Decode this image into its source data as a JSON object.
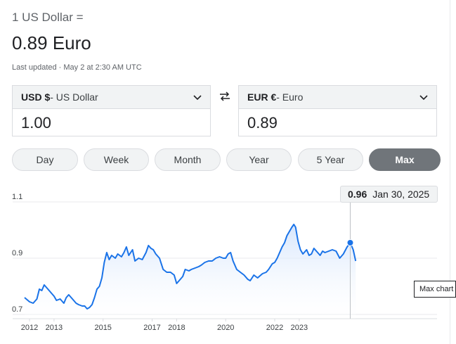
{
  "header": {
    "base_text": "1 US Dollar =",
    "result_text": "0.89 Euro",
    "updated_text": "Last updated · May 2 at 2:30 AM UTC"
  },
  "converter": {
    "from": {
      "code": "USD $",
      "name": " - US Dollar",
      "amount": "1.00",
      "icon": "chevron-down-icon"
    },
    "to": {
      "code": "EUR €",
      "name": " - Euro",
      "amount": "0.89",
      "icon": "chevron-down-icon"
    },
    "swap_icon": "swap-arrows-icon"
  },
  "ranges": {
    "items": [
      "Day",
      "Week",
      "Month",
      "Year",
      "5 Year",
      "Max"
    ],
    "active": "Max"
  },
  "tooltip": {
    "value": "0.96",
    "date": "Jan 30, 2025"
  },
  "alt_tooltip": {
    "text": "Max chart"
  },
  "colors": {
    "line": "#1a73e8",
    "active_pill": "#70757a",
    "area_top": "#d2e3fc"
  },
  "chart_data": {
    "type": "line",
    "series": [
      {
        "values": [
          [
            2011.8,
            0.76
          ],
          [
            2012.0,
            0.745
          ],
          [
            2012.15,
            0.74
          ],
          [
            2012.3,
            0.755
          ],
          [
            2012.4,
            0.79
          ],
          [
            2012.5,
            0.785
          ],
          [
            2012.6,
            0.805
          ],
          [
            2012.75,
            0.79
          ],
          [
            2012.9,
            0.775
          ],
          [
            2013.0,
            0.765
          ],
          [
            2013.1,
            0.75
          ],
          [
            2013.25,
            0.755
          ],
          [
            2013.4,
            0.74
          ],
          [
            2013.5,
            0.76
          ],
          [
            2013.6,
            0.77
          ],
          [
            2013.75,
            0.755
          ],
          [
            2013.9,
            0.74
          ],
          [
            2014.0,
            0.735
          ],
          [
            2014.15,
            0.73
          ],
          [
            2014.25,
            0.73
          ],
          [
            2014.35,
            0.72
          ],
          [
            2014.45,
            0.725
          ],
          [
            2014.55,
            0.735
          ],
          [
            2014.65,
            0.76
          ],
          [
            2014.75,
            0.79
          ],
          [
            2014.85,
            0.8
          ],
          [
            2014.95,
            0.83
          ],
          [
            2015.05,
            0.885
          ],
          [
            2015.15,
            0.92
          ],
          [
            2015.25,
            0.895
          ],
          [
            2015.35,
            0.91
          ],
          [
            2015.5,
            0.9
          ],
          [
            2015.6,
            0.915
          ],
          [
            2015.75,
            0.905
          ],
          [
            2015.85,
            0.92
          ],
          [
            2015.95,
            0.94
          ],
          [
            2016.05,
            0.91
          ],
          [
            2016.2,
            0.93
          ],
          [
            2016.3,
            0.89
          ],
          [
            2016.45,
            0.9
          ],
          [
            2016.6,
            0.895
          ],
          [
            2016.75,
            0.92
          ],
          [
            2016.85,
            0.945
          ],
          [
            2016.95,
            0.935
          ],
          [
            2017.05,
            0.93
          ],
          [
            2017.15,
            0.915
          ],
          [
            2017.3,
            0.9
          ],
          [
            2017.45,
            0.86
          ],
          [
            2017.6,
            0.85
          ],
          [
            2017.75,
            0.85
          ],
          [
            2017.9,
            0.84
          ],
          [
            2018.0,
            0.81
          ],
          [
            2018.1,
            0.82
          ],
          [
            2018.25,
            0.835
          ],
          [
            2018.35,
            0.86
          ],
          [
            2018.5,
            0.855
          ],
          [
            2018.6,
            0.86
          ],
          [
            2018.75,
            0.865
          ],
          [
            2018.9,
            0.87
          ],
          [
            2019.0,
            0.875
          ],
          [
            2019.15,
            0.885
          ],
          [
            2019.3,
            0.89
          ],
          [
            2019.45,
            0.89
          ],
          [
            2019.6,
            0.9
          ],
          [
            2019.75,
            0.905
          ],
          [
            2019.9,
            0.9
          ],
          [
            2020.0,
            0.9
          ],
          [
            2020.1,
            0.915
          ],
          [
            2020.2,
            0.92
          ],
          [
            2020.3,
            0.89
          ],
          [
            2020.45,
            0.86
          ],
          [
            2020.6,
            0.85
          ],
          [
            2020.75,
            0.84
          ],
          [
            2020.9,
            0.825
          ],
          [
            2021.0,
            0.82
          ],
          [
            2021.15,
            0.84
          ],
          [
            2021.3,
            0.83
          ],
          [
            2021.5,
            0.845
          ],
          [
            2021.65,
            0.85
          ],
          [
            2021.75,
            0.86
          ],
          [
            2021.9,
            0.88
          ],
          [
            2022.0,
            0.885
          ],
          [
            2022.1,
            0.9
          ],
          [
            2022.2,
            0.92
          ],
          [
            2022.3,
            0.94
          ],
          [
            2022.4,
            0.955
          ],
          [
            2022.5,
            0.98
          ],
          [
            2022.6,
            0.995
          ],
          [
            2022.7,
            1.01
          ],
          [
            2022.78,
            1.02
          ],
          [
            2022.85,
            1.01
          ],
          [
            2022.95,
            0.96
          ],
          [
            2023.05,
            0.93
          ],
          [
            2023.15,
            0.915
          ],
          [
            2023.3,
            0.93
          ],
          [
            2023.4,
            0.91
          ],
          [
            2023.5,
            0.915
          ],
          [
            2023.6,
            0.935
          ],
          [
            2023.75,
            0.92
          ],
          [
            2023.85,
            0.91
          ],
          [
            2023.95,
            0.925
          ],
          [
            2024.05,
            0.92
          ],
          [
            2024.2,
            0.925
          ],
          [
            2024.35,
            0.93
          ],
          [
            2024.5,
            0.925
          ],
          [
            2024.65,
            0.9
          ],
          [
            2024.8,
            0.915
          ],
          [
            2024.95,
            0.94
          ],
          [
            2025.08,
            0.955
          ],
          [
            2025.2,
            0.93
          ],
          [
            2025.3,
            0.89
          ]
        ]
      }
    ],
    "x_ticks": [
      "2012",
      "2013",
      "2015",
      "2017",
      "2018",
      "2020",
      "2022",
      "2023"
    ],
    "x_tick_values": [
      2012,
      2013,
      2015,
      2017,
      2018,
      2020,
      2022,
      2023
    ],
    "y_ticks": [
      "1.1",
      "0.9",
      "0.7"
    ],
    "y_tick_values": [
      1.1,
      0.9,
      0.7
    ],
    "ylim": [
      0.7,
      1.1
    ],
    "xlim": [
      2011.8,
      2025.7
    ],
    "grid": true,
    "highlight": {
      "x": 2025.08,
      "y": 0.955
    }
  }
}
